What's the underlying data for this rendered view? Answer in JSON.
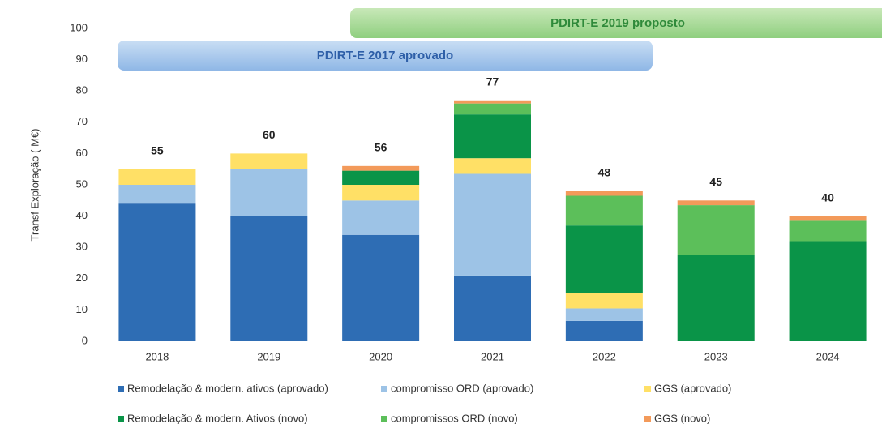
{
  "chart_data": {
    "type": "stacked_bar",
    "ylabel": "Transf Exploração ( M€)",
    "annotations": [
      "PDIRT-E 2017 aprovado",
      "PDIRT-E 2019 proposto"
    ],
    "categories": [
      "2018",
      "2019",
      "2020",
      "2021",
      "2022",
      "2023",
      "2024"
    ],
    "totals": [
      55,
      60,
      56,
      77,
      48,
      45,
      40
    ],
    "series": [
      {
        "name": "Remodelação & modern. ativos (aprovado)",
        "color": "#2e6db4",
        "values": [
          44,
          40,
          34,
          21,
          6.5,
          0,
          0
        ]
      },
      {
        "name": "compromisso ORD (aprovado)",
        "color": "#9dc3e6",
        "values": [
          6,
          15,
          11,
          32.5,
          4,
          0,
          0
        ]
      },
      {
        "name": "GGS (aprovado)",
        "color": "#ffe066",
        "values": [
          5,
          5,
          5,
          5,
          5,
          0,
          0
        ]
      },
      {
        "name": "Remodelação & modern. Ativos (novo)",
        "color": "#0a9448",
        "values": [
          0,
          0,
          4.5,
          14,
          21.5,
          27.5,
          32
        ]
      },
      {
        "name": "compromissos ORD (novo)",
        "color": "#5cbf5a",
        "values": [
          0,
          0,
          0,
          3.5,
          9.5,
          16,
          6.5
        ]
      },
      {
        "name": "GGS (novo)",
        "color": "#f39a5a",
        "values": [
          0,
          0,
          1.5,
          1,
          1.5,
          1.5,
          1.5
        ]
      }
    ],
    "ylim": [
      0,
      100
    ],
    "yticks": [
      0,
      10,
      20,
      30,
      40,
      50,
      60,
      70,
      80,
      90,
      100
    ],
    "grid": false
  }
}
